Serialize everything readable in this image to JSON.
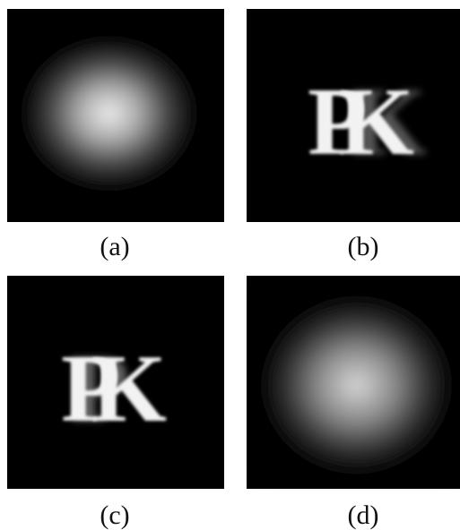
{
  "panels": [
    {
      "label": "(a)"
    },
    {
      "label": "(b)",
      "glyphs": [
        "P",
        "K"
      ]
    },
    {
      "label": "(c)",
      "glyphs": [
        "P",
        "K"
      ]
    },
    {
      "label": "(d)"
    }
  ]
}
